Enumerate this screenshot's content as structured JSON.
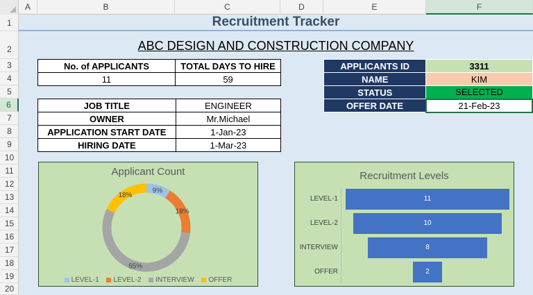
{
  "columns": [
    "A",
    "B",
    "C",
    "D",
    "E",
    "F"
  ],
  "rows": [
    "1",
    "2",
    "3",
    "4",
    "5",
    "6",
    "7",
    "8",
    "9",
    "10",
    "11",
    "12",
    "13",
    "14",
    "15",
    "16",
    "17",
    "18",
    "19",
    "20"
  ],
  "title": "Recruitment Tracker",
  "company": "ABC DESIGN AND CONSTRUCTION COMPANY",
  "summary": {
    "applicants_label": "No. of APPLICANTS",
    "days_label": "TOTAL DAYS TO HIRE",
    "applicants_value": "11",
    "days_value": "59"
  },
  "job": {
    "title_label": "JOB TITLE",
    "title_value": "ENGINEER",
    "owner_label": "OWNER",
    "owner_value": "Mr.Michael",
    "start_label": "APPLICATION START DATE",
    "start_value": "1-Jan-23",
    "hiring_label": "HIRING DATE",
    "hiring_value": "1-Mar-23"
  },
  "applicant": {
    "id_label": "APPLICANTS ID",
    "id_value": "3311",
    "name_label": "NAME",
    "name_value": "KIM",
    "status_label": "STATUS",
    "status_value": "SELECTED",
    "offer_label": "OFFER DATE",
    "offer_value": "21-Feb-23"
  },
  "colors": {
    "navy": "#1f3864",
    "light_green": "#c6e0b4",
    "peach": "#f8cbad",
    "status_green": "#00b050",
    "funnel_blue": "#4472c4"
  },
  "chart_data": [
    {
      "type": "pie",
      "variant": "doughnut",
      "title": "Applicant Count",
      "categories": [
        "LEVEL-1",
        "LEVEL-2",
        "INTERVIEW",
        "OFFER"
      ],
      "values": [
        9,
        18,
        55,
        18
      ],
      "labels": [
        "9%",
        "18%",
        "55%",
        "18%"
      ],
      "colors": [
        "#9dc3e6",
        "#ed7d31",
        "#a5a5a5",
        "#ffc000"
      ],
      "legend": "bottom"
    },
    {
      "type": "bar",
      "variant": "funnel",
      "title": "Recruitment Levels",
      "categories": [
        "LEVEL-1",
        "LEVEL-2",
        "INTERVIEW",
        "OFFER"
      ],
      "values": [
        11,
        10,
        8,
        2
      ],
      "labels": [
        "11",
        "10",
        "8",
        "2"
      ],
      "color": "#4472c4"
    }
  ]
}
